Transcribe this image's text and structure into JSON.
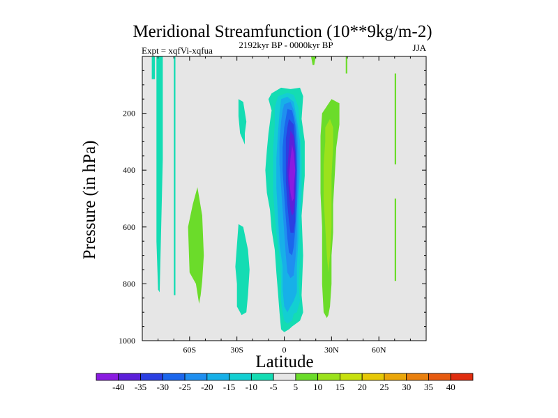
{
  "chart_data": {
    "type": "contour",
    "title": "Meridional Streamfunction (10**9kg/m-2)",
    "subtitle": "2192kyr BP - 0000kyr BP",
    "left_label": "Expt = xqfVi-xqfua",
    "right_label": "JJA",
    "xlabel": "Latitude",
    "ylabel": "Pressure (in hPa)",
    "xlim": [
      -90,
      90
    ],
    "ylim": [
      0,
      1000
    ],
    "y_inverted": true,
    "x_ticks": [
      {
        "value": -60,
        "label": "60S"
      },
      {
        "value": -30,
        "label": "30S"
      },
      {
        "value": 0,
        "label": "0"
      },
      {
        "value": 30,
        "label": "30N"
      },
      {
        "value": 60,
        "label": "60N"
      }
    ],
    "y_ticks": [
      {
        "value": 200,
        "label": "200"
      },
      {
        "value": 400,
        "label": "400"
      },
      {
        "value": 600,
        "label": "600"
      },
      {
        "value": 800,
        "label": "800"
      },
      {
        "value": 1000,
        "label": "1000"
      }
    ],
    "background_color": "#e6e6e6",
    "colorbar": {
      "levels": [
        -40,
        -35,
        -30,
        -25,
        -20,
        -15,
        -10,
        -5,
        5,
        10,
        15,
        20,
        25,
        30,
        35,
        40
      ],
      "colors": [
        "#8a1be0",
        "#5c1fd9",
        "#2b3fe2",
        "#1b66ec",
        "#1f8ff0",
        "#17b0e8",
        "#13cfd2",
        "#14dcb3",
        "#e6e6e6",
        "#6bdc2a",
        "#9be21c",
        "#c7e00e",
        "#e6c807",
        "#eaa60a",
        "#e9800e",
        "#e65a10",
        "#e02e10"
      ]
    },
    "features": [
      {
        "name": "far-south-column-left",
        "band": "-5 to -10",
        "lat": [
          -81,
          -77
        ],
        "p": [
          0,
          820
        ]
      },
      {
        "name": "far-south-column-right",
        "band": "-5 to -10",
        "lat": [
          -70,
          -69
        ],
        "p": [
          0,
          830
        ]
      },
      {
        "name": "south-midlat-cell",
        "band": "5 to 10",
        "lat": [
          -61,
          -51
        ],
        "p": [
          460,
          870
        ]
      },
      {
        "name": "upper-40s-cell",
        "band": "-5 to -10",
        "lat": [
          -29,
          -24
        ],
        "p": [
          150,
          310
        ]
      },
      {
        "name": "lower-40s-cell",
        "band": "-5 to -10",
        "lat": [
          -30,
          -22
        ],
        "p": [
          590,
          910
        ]
      },
      {
        "name": "tropical-negative-cell",
        "lat": [
          -12,
          13
        ],
        "p": [
          110,
          970
        ],
        "min": -40,
        "min_lat": 7,
        "min_p": 400
      },
      {
        "name": "tropical-positive-cell",
        "lat": [
          23,
          35
        ],
        "p": [
          150,
          920
        ],
        "max": 15,
        "max_lat": 28,
        "max_p": 400
      },
      {
        "name": "north-upper-column",
        "band": "5 to 10",
        "lat": [
          70,
          71
        ],
        "p": [
          60,
          380
        ]
      },
      {
        "name": "north-lower-column",
        "band": "5 to 10",
        "lat": [
          70,
          71
        ],
        "p": [
          500,
          790
        ]
      }
    ]
  }
}
